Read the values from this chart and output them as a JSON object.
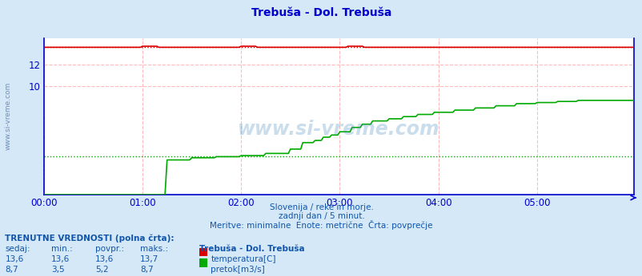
{
  "title": "Trebuša - Dol. Trebuša",
  "bg_color": "#d4e8f8",
  "plot_bg_color": "#ffffff",
  "grid_color": "#ffbbbb",
  "axis_color": "#0000cc",
  "title_color": "#0000cc",
  "text_color": "#1155aa",
  "xlim": [
    0,
    287
  ],
  "ylim": [
    0,
    14.4
  ],
  "yticks": [
    10,
    12
  ],
  "xtick_labels": [
    "00:00",
    "01:00",
    "02:00",
    "03:00",
    "04:00",
    "05:00"
  ],
  "xtick_positions": [
    0,
    48,
    96,
    144,
    192,
    240
  ],
  "subtitle1": "Slovenija / reke in morje.",
  "subtitle2": "zadnji dan / 5 minut.",
  "subtitle3": "Meritve: minimalne  Enote: metrične  Črta: povprečje",
  "table_header": "TRENUTNE VREDNOSTI (polna črta):",
  "col_headers": [
    "sedaj:",
    "min.:",
    "povpr.:",
    "maks.:",
    "Trebuša - Dol. Trebuša"
  ],
  "row1": [
    "13,6",
    "13,6",
    "13,6",
    "13,7",
    "temperatura[C]"
  ],
  "row2": [
    "8,7",
    "3,5",
    "5,2",
    "8,7",
    "pretok[m3/s]"
  ],
  "temp_color": "#dd0000",
  "flow_color": "#00aa00",
  "avg_temp": 13.6,
  "avg_flow": 3.5,
  "watermark": "www.si-vreme.com"
}
